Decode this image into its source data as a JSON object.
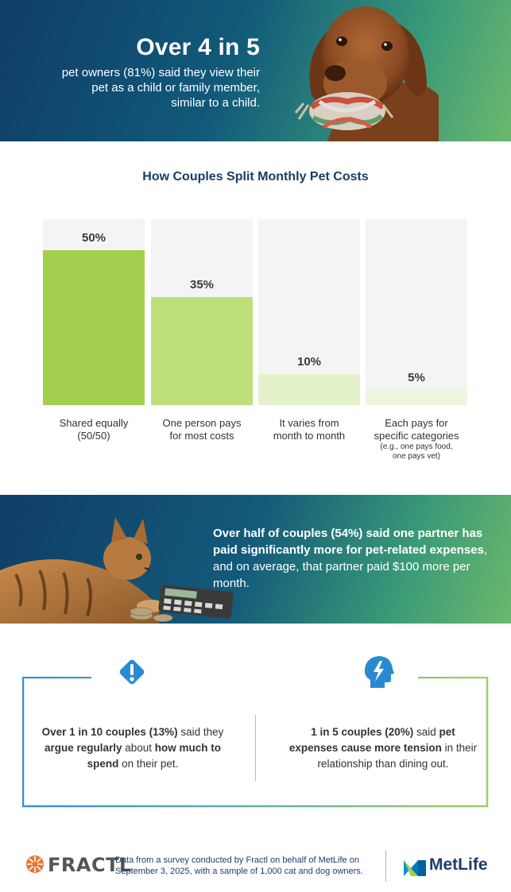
{
  "hero": {
    "headline": "Over 4 in 5",
    "body_lines": [
      "pet owners (81%) said they view their",
      "pet as a child or family member,",
      "similar to a child."
    ]
  },
  "chart": {
    "title": "How Couples Split Monthly Pet Costs"
  },
  "chart_data": {
    "type": "bar",
    "title": "How Couples Split Monthly Pet Costs",
    "categories": [
      "Shared equally (50/50)",
      "One person pays for most costs",
      "It varies from month to month",
      "Each pays for specific categories (e.g., one pays food, one pays vet)"
    ],
    "values": [
      50,
      35,
      10,
      5
    ],
    "value_labels": [
      "50%",
      "35%",
      "10%",
      "5%"
    ],
    "ylim": [
      0,
      60
    ],
    "grid": false,
    "bar_colors": [
      "#a3cf4f",
      "#bde07a",
      "#e4f2cc",
      "#edf6dd"
    ],
    "label_lines": [
      [
        "Shared equally",
        "(50/50)"
      ],
      [
        "One person pays",
        "for most costs"
      ],
      [
        "It varies from",
        "month to month"
      ],
      [
        "Each pays for",
        "specific categories"
      ]
    ],
    "label_notes": [
      "",
      "",
      "",
      "(e.g., one pays food,\none pays vet)"
    ]
  },
  "banner2": {
    "segments": [
      {
        "text": "Over half of couples (54%) said ",
        "bold": true
      },
      {
        "text": "one partner has paid significantly more for pet-related expenses",
        "bold": true
      },
      {
        "text": ", and on average, that partner paid $100 more per month.",
        "bold": false
      }
    ]
  },
  "stats": [
    {
      "icon": "exclamation-icon",
      "segments": [
        {
          "text": "Over 1 in 10 couples (13%)",
          "bold": true
        },
        {
          "text": " said they ",
          "bold": false
        },
        {
          "text": "argue regularly",
          "bold": true
        },
        {
          "text": " about ",
          "bold": false
        },
        {
          "text": "how much to spend",
          "bold": true
        },
        {
          "text": " on their pet.",
          "bold": false
        }
      ]
    },
    {
      "icon": "head-lightning-icon",
      "segments": [
        {
          "text": "1 in 5 couples (20%)",
          "bold": true
        },
        {
          "text": " said ",
          "bold": false
        },
        {
          "text": "pet expenses cause more tension",
          "bold": true
        },
        {
          "text": " in their relationship than dining out.",
          "bold": false
        }
      ]
    }
  ],
  "footer": {
    "fractl_logo": "FRACTL",
    "note_lines": [
      "Data from a survey conducted by Fractl on behalf of MetLife on",
      "September 3, 2025, with a sample of 1,000 cat and dog owners."
    ],
    "metlife_logo": "MetLife"
  },
  "colors": {
    "navy": "#1a3d63",
    "green": "#a3cf4f",
    "blue_icon": "#2a8ad1",
    "box_blue": "#3a8fd0",
    "box_green": "#9ccf62"
  }
}
